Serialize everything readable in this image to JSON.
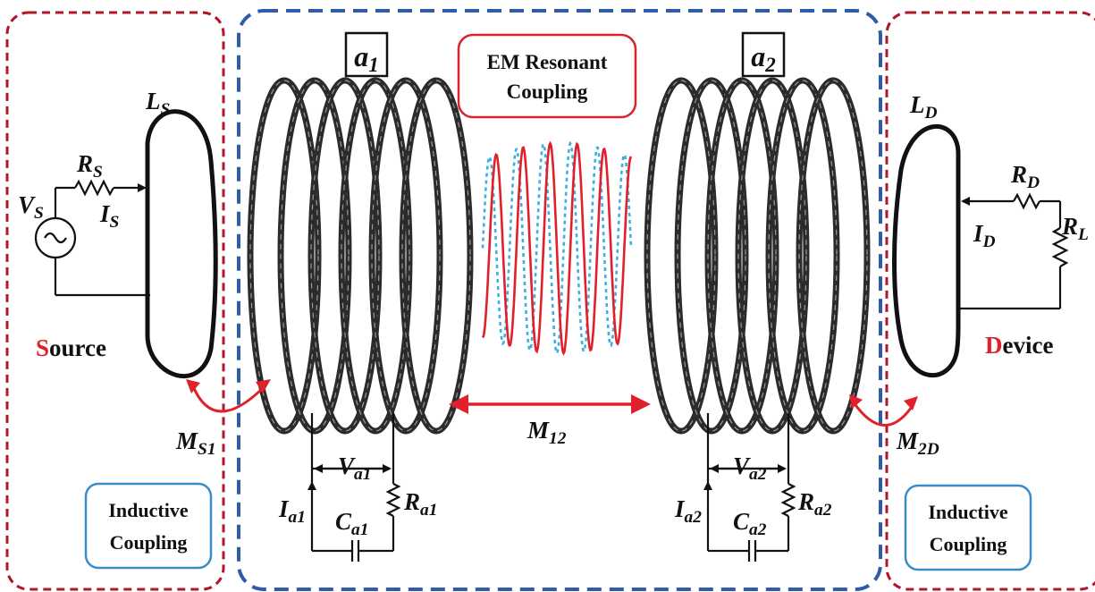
{
  "colors": {
    "red_border": "#b0182a",
    "blue_border": "#2e5cab",
    "inductive_box": "#3a8cc8",
    "em_box": "#d8242c",
    "accent_red": "#e0202a",
    "wave_blue": "#3ab0e0",
    "coil": "#2b2b2b",
    "wire": "#111111"
  },
  "resonators": {
    "a1": {
      "main": "a",
      "sub": "1"
    },
    "a2": {
      "main": "a",
      "sub": "2"
    }
  },
  "em_box": {
    "line1": "EM Resonant",
    "line2": "Coupling"
  },
  "inductive_left": {
    "line1": "Inductive",
    "line2": "Coupling"
  },
  "inductive_right": {
    "line1": "Inductive",
    "line2": "Coupling"
  },
  "source": {
    "first_letter": "S",
    "rest": "ource"
  },
  "device": {
    "first_letter": "D",
    "rest": "evice"
  },
  "labels": {
    "LS": {
      "main": "L",
      "sub": "S"
    },
    "RS": {
      "main": "R",
      "sub": "S"
    },
    "VS": {
      "main": "V",
      "sub": "S"
    },
    "IS": {
      "main": "I",
      "sub": "S"
    },
    "LD": {
      "main": "L",
      "sub": "D"
    },
    "RD": {
      "main": "R",
      "sub": "D"
    },
    "RL": {
      "main": "R",
      "sub": "L"
    },
    "ID": {
      "main": "I",
      "sub": "D"
    },
    "MS1": {
      "main": "M",
      "sub": "S1"
    },
    "M12": {
      "main": "M",
      "sub": "12"
    },
    "M2D": {
      "main": "M",
      "sub": "2D"
    },
    "Va1": {
      "main": "V",
      "sub": "a1"
    },
    "Ia1": {
      "main": "I",
      "sub": "a1"
    },
    "Ca1": {
      "main": "C",
      "sub": "a1"
    },
    "Ra1": {
      "main": "R",
      "sub": "a1"
    },
    "Va2": {
      "main": "V",
      "sub": "a2"
    },
    "Ia2": {
      "main": "I",
      "sub": "a2"
    },
    "Ca2": {
      "main": "C",
      "sub": "a2"
    },
    "Ra2": {
      "main": "R",
      "sub": "a2"
    }
  }
}
